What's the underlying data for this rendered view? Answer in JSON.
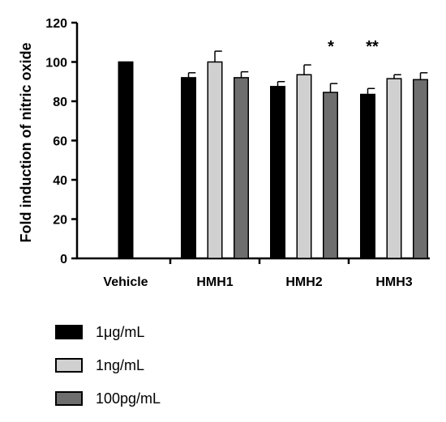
{
  "chart_data": {
    "type": "bar",
    "ylabel": "Fold induction of nitric oxide",
    "xlabel": "",
    "ylim": [
      0,
      120
    ],
    "yticks": [
      0,
      20,
      40,
      60,
      80,
      100,
      120
    ],
    "categories": [
      "Vehicle",
      "HMH1",
      "HMH2",
      "HMH3"
    ],
    "series": [
      {
        "name": "1μg/mL",
        "color": "#000000",
        "values": [
          100,
          92,
          87.5,
          83.5
        ],
        "errors": [
          0,
          2.5,
          2.5,
          3
        ]
      },
      {
        "name": "1ng/mL",
        "color": "#d0d0d0",
        "values": [
          null,
          100,
          93.5,
          91.5
        ],
        "errors": [
          null,
          5.5,
          5,
          2
        ]
      },
      {
        "name": "100pg/mL",
        "color": "#6e6e6e",
        "values": [
          null,
          92,
          84.5,
          91
        ],
        "errors": [
          null,
          3,
          4.5,
          3.5
        ]
      }
    ],
    "annotations": [
      {
        "category": "HMH2",
        "text": "*"
      },
      {
        "category": "HMH3",
        "text": "**"
      }
    ],
    "legend_position": "bottom-left",
    "grid": false
  }
}
